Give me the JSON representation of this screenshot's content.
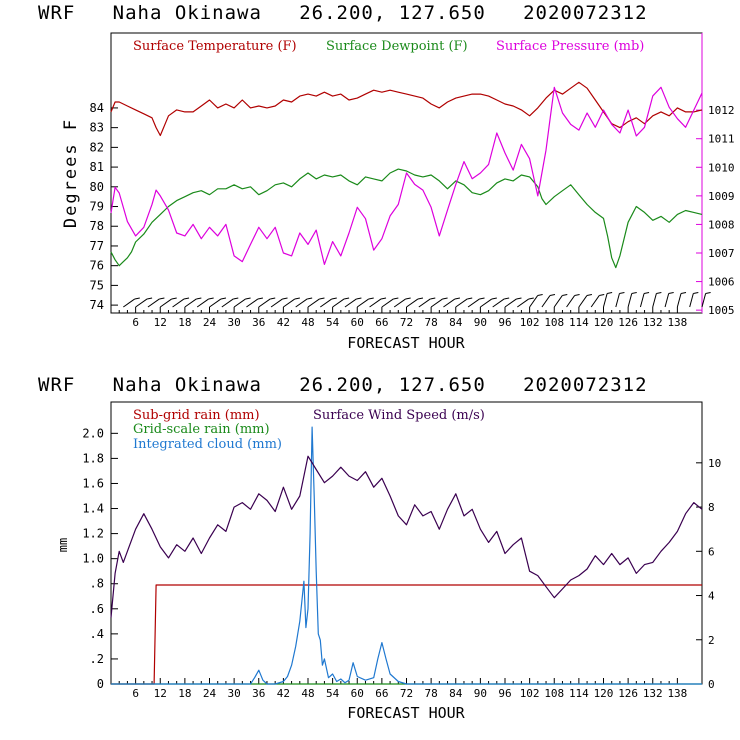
{
  "chart_data": [
    {
      "type": "line",
      "title": "WRF   Naha Okinawa   26.200, 127.650   2020072312",
      "xlabel": "FORECAST HOUR",
      "ylabel": "Degrees F",
      "xlim": [
        0,
        144
      ],
      "ylim": [
        73.6,
        87.8
      ],
      "y2lim": [
        1004.9,
        1014.7
      ],
      "x_ticks": [
        "6",
        "12",
        "18",
        "24",
        "30",
        "36",
        "42",
        "48",
        "54",
        "60",
        "66",
        "72",
        "78",
        "84",
        "90",
        "96",
        "102",
        "108",
        "114",
        "120",
        "126",
        "132",
        "138"
      ],
      "y_ticks": [
        "74",
        "75",
        "76",
        "77",
        "78",
        "79",
        "80",
        "81",
        "82",
        "83",
        "84"
      ],
      "y2_ticks": [
        "1005",
        "1006",
        "1007",
        "1008",
        "1009",
        "1010",
        "1011",
        "1012"
      ],
      "colors": {
        "temperature": "#b00000",
        "dewpoint": "#1a8a1a",
        "pressure": "#dd00dd",
        "wind_barbs": "#000000"
      },
      "series": [
        {
          "name": "Surface Temperature (F)",
          "axis": "left",
          "x": [
            0,
            1,
            2,
            4,
            6,
            8,
            10,
            11,
            12,
            13,
            14,
            16,
            18,
            20,
            22,
            24,
            26,
            28,
            30,
            32,
            34,
            36,
            38,
            40,
            42,
            44,
            46,
            48,
            50,
            52,
            54,
            56,
            58,
            60,
            62,
            64,
            66,
            68,
            70,
            72,
            74,
            76,
            78,
            80,
            82,
            84,
            86,
            88,
            90,
            92,
            94,
            96,
            98,
            100,
            102,
            104,
            106,
            108,
            110,
            112,
            114,
            116,
            118,
            120,
            122,
            124,
            126,
            128,
            130,
            132,
            134,
            136,
            138,
            140,
            142,
            144
          ],
          "y": [
            83.8,
            84.3,
            84.3,
            84.1,
            83.9,
            83.7,
            83.5,
            83.0,
            82.6,
            83.1,
            83.6,
            83.9,
            83.8,
            83.8,
            84.1,
            84.4,
            84.0,
            84.2,
            84.0,
            84.4,
            84.0,
            84.1,
            84.0,
            84.1,
            84.4,
            84.3,
            84.6,
            84.7,
            84.6,
            84.8,
            84.6,
            84.7,
            84.4,
            84.5,
            84.7,
            84.9,
            84.8,
            84.9,
            84.8,
            84.7,
            84.6,
            84.5,
            84.2,
            84.0,
            84.3,
            84.5,
            84.6,
            84.7,
            84.7,
            84.6,
            84.4,
            84.2,
            84.1,
            83.9,
            83.6,
            84.0,
            84.5,
            84.9,
            84.7,
            85.0,
            85.3,
            85.0,
            84.4,
            83.8,
            83.2,
            83.0,
            83.3,
            83.5,
            83.2,
            83.6,
            83.8,
            83.6,
            84.0,
            83.8,
            83.8,
            83.9
          ]
        },
        {
          "name": "Surface Dewpoint (F)",
          "axis": "left",
          "x": [
            0,
            1,
            2,
            3,
            4,
            5,
            6,
            8,
            10,
            12,
            14,
            16,
            18,
            20,
            22,
            24,
            26,
            28,
            30,
            32,
            34,
            36,
            38,
            40,
            42,
            44,
            46,
            48,
            50,
            52,
            54,
            56,
            58,
            60,
            62,
            64,
            66,
            68,
            70,
            72,
            74,
            76,
            78,
            80,
            82,
            84,
            86,
            88,
            90,
            92,
            94,
            96,
            98,
            100,
            102,
            104,
            105,
            106,
            108,
            110,
            112,
            114,
            116,
            118,
            120,
            121,
            122,
            123,
            124,
            126,
            128,
            130,
            132,
            134,
            136,
            138,
            140,
            142,
            144
          ],
          "y": [
            76.7,
            76.3,
            76.0,
            76.2,
            76.4,
            76.7,
            77.2,
            77.6,
            78.2,
            78.6,
            79.0,
            79.3,
            79.5,
            79.7,
            79.8,
            79.6,
            79.9,
            79.9,
            80.1,
            79.9,
            80.0,
            79.6,
            79.8,
            80.1,
            80.2,
            80.0,
            80.4,
            80.7,
            80.4,
            80.6,
            80.5,
            80.6,
            80.3,
            80.1,
            80.5,
            80.4,
            80.3,
            80.7,
            80.9,
            80.8,
            80.6,
            80.5,
            80.6,
            80.3,
            79.9,
            80.3,
            80.1,
            79.7,
            79.6,
            79.8,
            80.2,
            80.4,
            80.3,
            80.6,
            80.5,
            80.0,
            79.4,
            79.1,
            79.5,
            79.8,
            80.1,
            79.6,
            79.1,
            78.7,
            78.4,
            77.5,
            76.4,
            75.9,
            76.5,
            78.2,
            79.0,
            78.7,
            78.3,
            78.5,
            78.2,
            78.6,
            78.8,
            78.7,
            78.6
          ]
        },
        {
          "name": "Surface Pressure (mb)",
          "axis": "right",
          "x": [
            0,
            1,
            2,
            4,
            6,
            8,
            10,
            11,
            12,
            14,
            16,
            18,
            20,
            22,
            24,
            26,
            28,
            30,
            32,
            34,
            36,
            38,
            40,
            42,
            44,
            46,
            48,
            50,
            52,
            54,
            56,
            58,
            60,
            62,
            64,
            66,
            68,
            70,
            72,
            74,
            76,
            78,
            80,
            82,
            84,
            86,
            88,
            90,
            92,
            94,
            96,
            98,
            100,
            102,
            104,
            106,
            107,
            108,
            110,
            112,
            114,
            116,
            118,
            120,
            122,
            124,
            126,
            128,
            130,
            132,
            134,
            136,
            138,
            140,
            142,
            144
          ],
          "y": [
            1008.4,
            1009.3,
            1009.1,
            1008.1,
            1007.6,
            1007.9,
            1008.7,
            1009.2,
            1009.0,
            1008.5,
            1007.7,
            1007.6,
            1008.0,
            1007.5,
            1007.9,
            1007.6,
            1008.0,
            1006.9,
            1006.7,
            1007.3,
            1007.9,
            1007.5,
            1007.9,
            1007.0,
            1006.9,
            1007.7,
            1007.3,
            1007.8,
            1006.6,
            1007.4,
            1006.9,
            1007.7,
            1008.6,
            1008.2,
            1007.1,
            1007.5,
            1008.3,
            1008.7,
            1009.8,
            1009.4,
            1009.2,
            1008.6,
            1007.6,
            1008.5,
            1009.4,
            1010.2,
            1009.6,
            1009.8,
            1010.1,
            1011.2,
            1010.5,
            1009.9,
            1010.8,
            1010.3,
            1009.0,
            1010.6,
            1011.7,
            1012.8,
            1011.9,
            1011.5,
            1011.3,
            1011.9,
            1011.4,
            1012.0,
            1011.5,
            1011.2,
            1012.0,
            1011.1,
            1011.4,
            1012.5,
            1012.8,
            1012.1,
            1011.7,
            1011.4,
            1012.0,
            1012.6
          ]
        }
      ],
      "legend": [
        "Surface Temperature (F)",
        "Surface Dewpoint (F)",
        "Surface Pressure (mb)"
      ],
      "legend_position": "top-left",
      "grid": false,
      "notes": "wind barbs drawn along the bottom of the panel"
    },
    {
      "type": "line",
      "title": "WRF   Naha Okinawa   26.200, 127.650   2020072312",
      "xlabel": "FORECAST HOUR",
      "ylabel": "mm",
      "xlim": [
        0,
        144
      ],
      "ylim": [
        0,
        2.25
      ],
      "y2lim": [
        0,
        12.75
      ],
      "x_ticks": [
        "6",
        "12",
        "18",
        "24",
        "30",
        "36",
        "42",
        "48",
        "54",
        "60",
        "66",
        "72",
        "78",
        "84",
        "90",
        "96",
        "102",
        "108",
        "114",
        "120",
        "126",
        "132",
        "138"
      ],
      "y_ticks": [
        "0",
        ".2",
        ".4",
        ".6",
        ".8",
        "1.0",
        "1.2",
        "1.4",
        "1.6",
        "1.8",
        "2.0"
      ],
      "y2_ticks": [
        "0",
        "2",
        "4",
        "6",
        "8",
        "10"
      ],
      "colors": {
        "subgrid_rain": "#b00000",
        "gridscale_rain": "#1a8a1a",
        "cloud": "#1f78d0",
        "wind_speed": "#3a0050"
      },
      "series": [
        {
          "name": "Sub-grid rain (mm)",
          "axis": "left",
          "x": [
            0,
            10.5,
            11,
            144
          ],
          "y": [
            0,
            0,
            0.79,
            0.79
          ]
        },
        {
          "name": "Grid-scale rain (mm)",
          "axis": "left",
          "x": [
            0,
            144
          ],
          "y": [
            0,
            0
          ]
        },
        {
          "name": "Integrated cloud (mm)",
          "axis": "left",
          "x": [
            0,
            34,
            35,
            36,
            37,
            38,
            40,
            42,
            43,
            44,
            45,
            46,
            47,
            47.5,
            48,
            48.5,
            49,
            49.5,
            50,
            50.5,
            51,
            51.5,
            52,
            53,
            54,
            55,
            56,
            57,
            58,
            59,
            60,
            62,
            64,
            65,
            66,
            67,
            68,
            70,
            72,
            144
          ],
          "y": [
            0,
            0,
            0.05,
            0.11,
            0.03,
            0,
            0,
            0.02,
            0.06,
            0.15,
            0.3,
            0.5,
            0.82,
            0.45,
            0.6,
            1.2,
            2.05,
            1.5,
            0.9,
            0.4,
            0.35,
            0.15,
            0.2,
            0.05,
            0.08,
            0.02,
            0.04,
            0.01,
            0.03,
            0.17,
            0.06,
            0.03,
            0.05,
            0.2,
            0.33,
            0.2,
            0.08,
            0.02,
            0,
            0
          ]
        },
        {
          "name": "Surface Wind Speed (m/s)",
          "axis": "right",
          "x": [
            0,
            1,
            2,
            3,
            4,
            6,
            8,
            10,
            12,
            14,
            16,
            18,
            20,
            22,
            24,
            26,
            28,
            30,
            32,
            34,
            36,
            38,
            40,
            42,
            44,
            46,
            48,
            50,
            52,
            54,
            56,
            58,
            60,
            62,
            64,
            66,
            68,
            70,
            72,
            74,
            76,
            78,
            80,
            82,
            84,
            86,
            88,
            90,
            92,
            94,
            96,
            98,
            100,
            102,
            104,
            106,
            108,
            110,
            112,
            114,
            116,
            118,
            120,
            122,
            124,
            126,
            128,
            130,
            132,
            134,
            136,
            138,
            140,
            142,
            144
          ],
          "y": [
            3.0,
            5.0,
            6.0,
            5.5,
            6.0,
            7.0,
            7.7,
            7.0,
            6.2,
            5.7,
            6.3,
            6.0,
            6.6,
            5.9,
            6.6,
            7.2,
            6.9,
            8.0,
            8.2,
            7.9,
            8.6,
            8.3,
            7.8,
            8.9,
            7.9,
            8.5,
            10.3,
            9.7,
            9.1,
            9.4,
            9.8,
            9.4,
            9.2,
            9.6,
            8.9,
            9.3,
            8.5,
            7.6,
            7.2,
            8.1,
            7.6,
            7.8,
            7.0,
            7.9,
            8.6,
            7.6,
            7.9,
            7.0,
            6.4,
            6.9,
            5.9,
            6.3,
            6.6,
            5.1,
            4.9,
            4.4,
            3.9,
            4.3,
            4.7,
            4.9,
            5.2,
            5.8,
            5.4,
            5.9,
            5.4,
            5.7,
            5.0,
            5.4,
            5.5,
            6.0,
            6.4,
            6.9,
            7.7,
            8.2,
            7.9
          ]
        }
      ],
      "legend": [
        "Sub-grid rain (mm)",
        "Grid-scale rain (mm)",
        "Integrated cloud (mm)",
        "Surface Wind Speed (m/s)"
      ],
      "legend_position": "top-left",
      "grid": false
    }
  ]
}
